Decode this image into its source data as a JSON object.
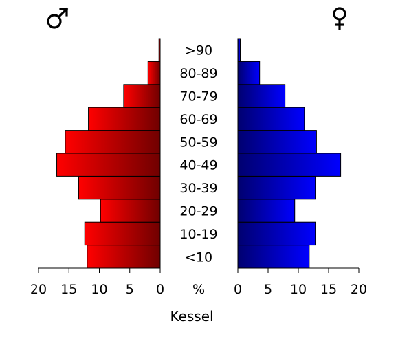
{
  "chart_data": {
    "type": "bar",
    "orientation": "horizontal",
    "layout": "population-pyramid",
    "categories": [
      "<10",
      "10-19",
      "20-29",
      "30-39",
      "40-49",
      "50-59",
      "60-69",
      "70-79",
      "80-89",
      ">90"
    ],
    "series": [
      {
        "name": "♂",
        "side": "left",
        "color_light": "#ff0000",
        "color_dark": "#700000",
        "values": [
          12.0,
          12.4,
          9.8,
          13.4,
          17.0,
          15.6,
          11.8,
          6.0,
          2.0,
          0.2
        ]
      },
      {
        "name": "♀",
        "side": "right",
        "color_light": "#0000ff",
        "color_dark": "#000070",
        "values": [
          11.8,
          12.8,
          9.4,
          12.8,
          17.0,
          13.0,
          11.0,
          7.8,
          3.6,
          0.4
        ]
      }
    ],
    "xlim": [
      0,
      20
    ],
    "xticks": [
      0,
      5,
      10,
      15,
      20
    ],
    "center_label": "%",
    "xlabel": "Kessel",
    "title": ""
  }
}
